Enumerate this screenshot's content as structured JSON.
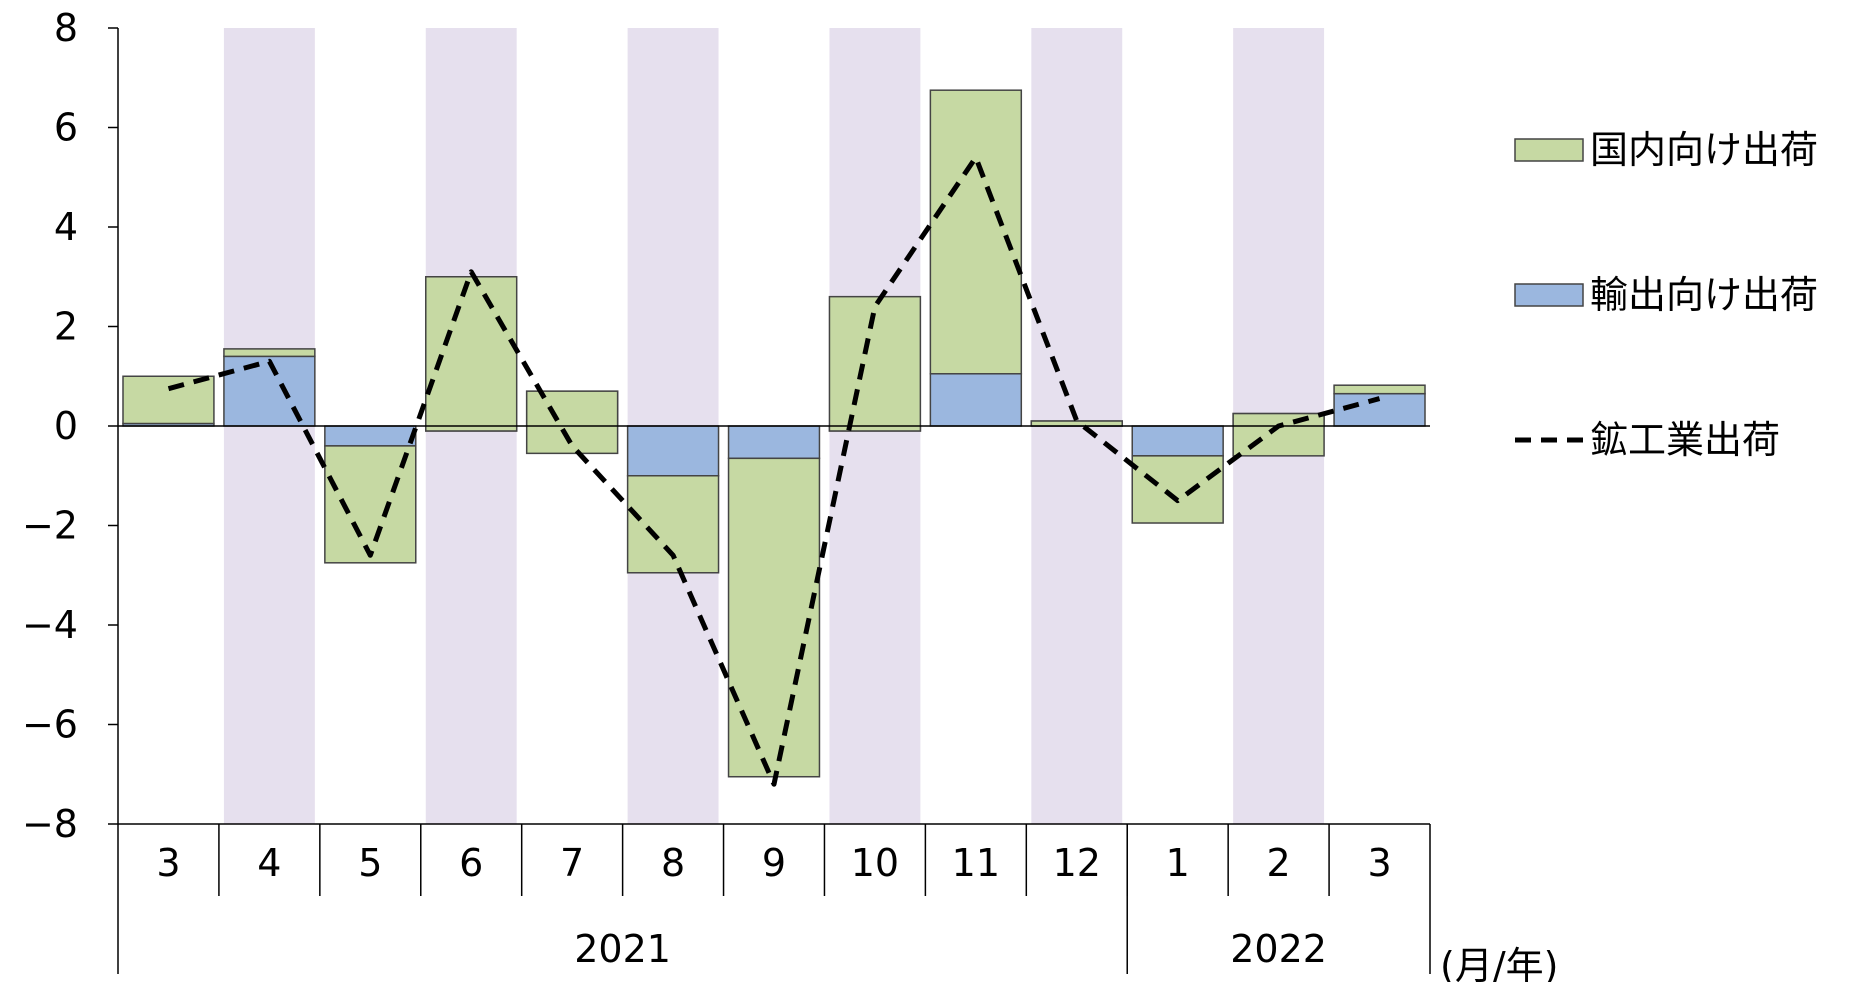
{
  "chart_data": {
    "type": "bar",
    "stacked": true,
    "categories": [
      "3",
      "4",
      "5",
      "6",
      "7",
      "8",
      "9",
      "10",
      "11",
      "12",
      "1",
      "2",
      "3"
    ],
    "year_groups": [
      {
        "label": "2021",
        "start": 0,
        "end": 9
      },
      {
        "label": "2022",
        "start": 10,
        "end": 12
      }
    ],
    "unit_label": "(月/年)",
    "ylim": [
      -8,
      8
    ],
    "yticks": [
      -8,
      -6,
      -4,
      -2,
      0,
      2,
      4,
      6,
      8
    ],
    "ytick_labels": [
      "−8",
      "−6",
      "−4",
      "−2",
      "0",
      "2",
      "4",
      "6",
      "8"
    ],
    "shaded_categories": [
      1,
      3,
      5,
      7,
      9,
      11
    ],
    "shade_color": "#e6e0ee",
    "series": [
      {
        "name": "輸出向け出荷",
        "kind": "bar",
        "color": "#9bb7df",
        "border": "#444444",
        "values": [
          0.05,
          1.4,
          -0.4,
          -0.1,
          0.7,
          -1.0,
          -0.65,
          -0.1,
          1.05,
          0.1,
          -0.6,
          0.25,
          0.65
        ]
      },
      {
        "name": "国内向け出荷",
        "kind": "bar",
        "color": "#c6d9a3",
        "border": "#444444",
        "values": [
          0.95,
          0.15,
          -2.35,
          3.1,
          -1.25,
          -1.95,
          -6.4,
          2.7,
          5.7,
          -0.1,
          -1.35,
          -0.85,
          0.17
        ]
      },
      {
        "name": "鉱工業出荷",
        "kind": "line",
        "color": "#000000",
        "dashed": true,
        "values": [
          0.75,
          1.3,
          -2.6,
          3.1,
          -0.4,
          -2.6,
          -7.2,
          2.4,
          5.4,
          0.1,
          -1.5,
          0.0,
          0.55
        ]
      }
    ],
    "legend": {
      "position": "right",
      "order": [
        "国内向け出荷",
        "輸出向け出荷",
        "鉱工業出荷"
      ]
    }
  }
}
